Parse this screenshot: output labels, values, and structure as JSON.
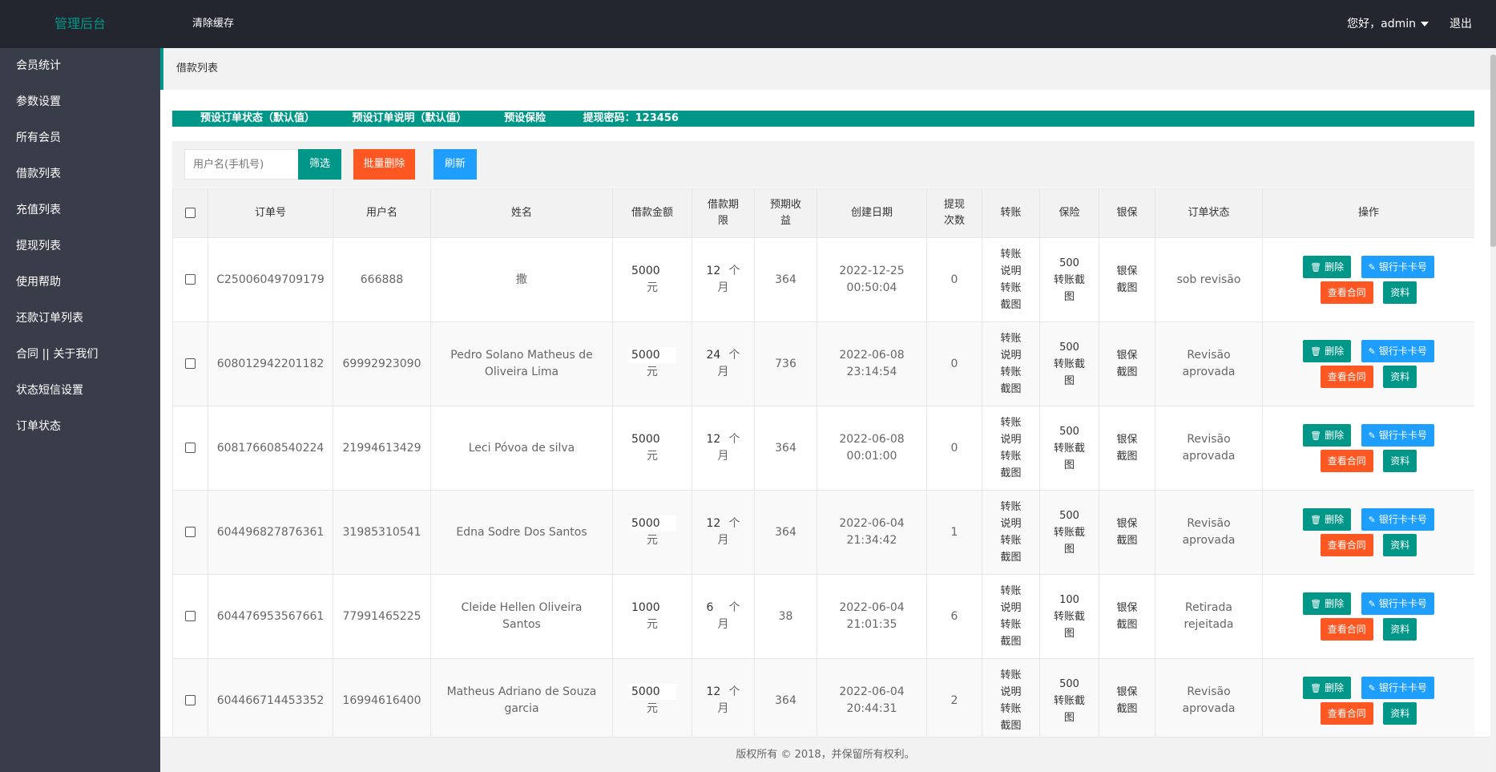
{
  "header": {
    "logo": "管理后台",
    "clear_cache": "清除缓存",
    "greeting": "您好，admin",
    "logout": "退出"
  },
  "sidebar": {
    "items": [
      {
        "label": "会员统计"
      },
      {
        "label": "参数设置"
      },
      {
        "label": "所有会员"
      },
      {
        "label": "借款列表"
      },
      {
        "label": "充值列表"
      },
      {
        "label": "提现列表"
      },
      {
        "label": "使用帮助"
      },
      {
        "label": "还款订单列表"
      },
      {
        "label": "合同 || 关于我们"
      },
      {
        "label": "状态短信设置"
      },
      {
        "label": "订单状态"
      }
    ]
  },
  "page": {
    "breadcrumb": "借款列表",
    "banner": [
      "预设订单状态（默认值）",
      "预设订单说明（默认值）",
      "预设保险",
      "提现密码：123456"
    ],
    "search_placeholder": "用户名(手机号)",
    "filter_btn": "筛选",
    "batch_delete_btn": "批量删除",
    "refresh_btn": "刷新",
    "footer": "版权所有 © 2018，并保留所有权利。"
  },
  "table": {
    "headers": {
      "order_no": "订单号",
      "username": "用户名",
      "name": "姓名",
      "amount": "借款金额",
      "term": "借款期限",
      "income": "预期收益",
      "created": "创建日期",
      "withdraw_count": "提现次数",
      "transfer": "转账",
      "insurance": "保险",
      "bank_guarantee": "银保",
      "status": "订单状态",
      "actions": "操作"
    },
    "labels": {
      "yuan": "元",
      "ge": "个",
      "month": "月",
      "transfer_lines": [
        "转账",
        "说明",
        "转账",
        "截图"
      ],
      "transfer_shot": "转账截",
      "tu": "图",
      "bank_guarantee_l1": "银保",
      "bank_guarantee_l2": "截图",
      "delete": "删除",
      "bank_card": "银行卡卡号",
      "view_contract": "查看合同",
      "profile": "资料"
    },
    "rows": [
      {
        "order_no": "C25006049709179",
        "username": "666888",
        "name": "撒",
        "amount": "5000",
        "term": "12",
        "income": "364",
        "date": "2022-12-25",
        "time": "00:50:04",
        "withdraw_count": "0",
        "insurance": "500",
        "status": "sob revisão"
      },
      {
        "order_no": "608012942201182",
        "username": "69992923090",
        "name": "Pedro Solano Matheus de Oliveira Lima",
        "amount": "5000",
        "term": "24",
        "income": "736",
        "date": "2022-06-08",
        "time": "23:14:54",
        "withdraw_count": "0",
        "insurance": "500",
        "status": "Revisão aprovada"
      },
      {
        "order_no": "608176608540224",
        "username": "21994613429",
        "name": "Leci Póvoa de silva",
        "amount": "5000",
        "term": "12",
        "income": "364",
        "date": "2022-06-08",
        "time": "00:01:00",
        "withdraw_count": "0",
        "insurance": "500",
        "status": "Revisão aprovada"
      },
      {
        "order_no": "604496827876361",
        "username": "31985310541",
        "name": "Edna Sodre Dos Santos",
        "amount": "5000",
        "term": "12",
        "income": "364",
        "date": "2022-06-04",
        "time": "21:34:42",
        "withdraw_count": "1",
        "insurance": "500",
        "status": "Revisão aprovada"
      },
      {
        "order_no": "604476953567661",
        "username": "77991465225",
        "name": "Cleide Hellen Oliveira Santos",
        "amount": "1000",
        "term": "6",
        "income": "38",
        "date": "2022-06-04",
        "time": "21:01:35",
        "withdraw_count": "6",
        "insurance": "100",
        "status": "Retirada rejeitada"
      },
      {
        "order_no": "604466714453352",
        "username": "16994616400",
        "name": "Matheus Adriano de Souza garcia",
        "amount": "5000",
        "term": "12",
        "income": "364",
        "date": "2022-06-04",
        "time": "20:44:31",
        "withdraw_count": "2",
        "insurance": "500",
        "status": "Revisão aprovada"
      }
    ]
  },
  "colors": {
    "accent": "#009688",
    "danger": "#ff5722",
    "info": "#1e9fff",
    "topbar": "#23262e",
    "sidebar": "#393d49"
  }
}
